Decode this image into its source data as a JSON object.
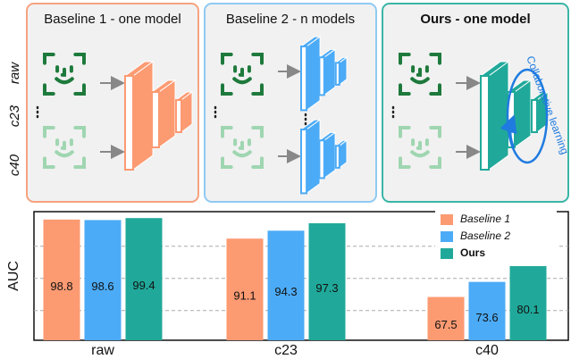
{
  "diagram": {
    "panels": [
      {
        "title": "Baseline 1 - one model"
      },
      {
        "title": "Baseline 2 - n models"
      },
      {
        "title": "Ours - one model"
      }
    ],
    "rows": [
      "raw",
      "c23",
      "c40"
    ],
    "loop_label": "Collaborative learning"
  },
  "chart_data": {
    "type": "bar",
    "ylabel": "AUC",
    "categories": [
      "raw",
      "c23",
      "c40"
    ],
    "series": [
      {
        "name": "Baseline 1",
        "color": "#fc9a72",
        "values": [
          98.8,
          91.1,
          67.5
        ]
      },
      {
        "name": "Baseline 2",
        "color": "#4cabf6",
        "values": [
          98.6,
          94.3,
          73.6
        ]
      },
      {
        "name": "Ours",
        "color": "#20a99a",
        "values": [
          99.4,
          97.3,
          80.1
        ]
      }
    ],
    "ylim": [
      50,
      102
    ],
    "gridlines": [
      62,
      75,
      88
    ],
    "grid": true,
    "legend": "upper right"
  }
}
